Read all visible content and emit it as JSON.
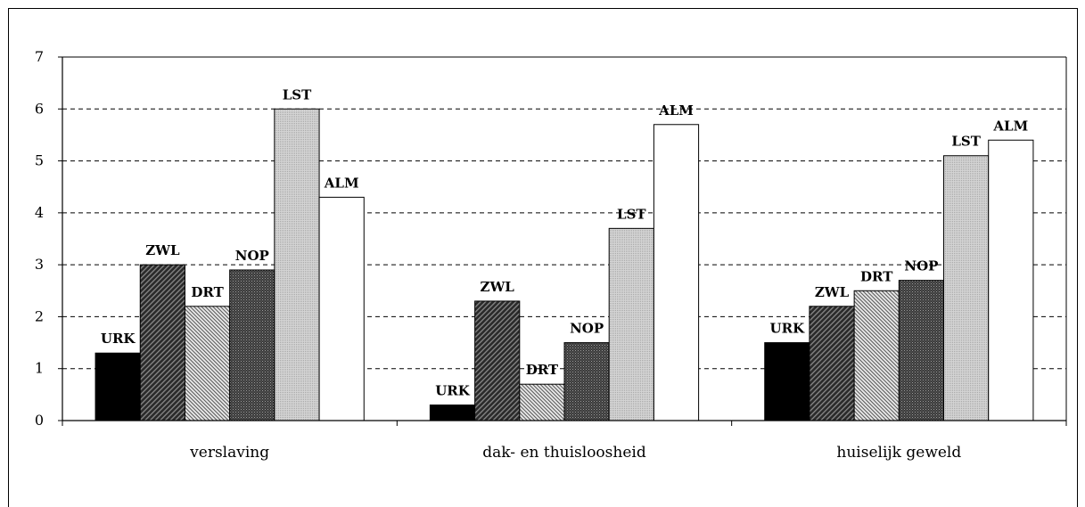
{
  "chart_data": {
    "type": "bar",
    "categories": [
      "verslaving",
      "dak- en thuisloosheid",
      "huiselijk geweld"
    ],
    "series": [
      {
        "name": "URK",
        "values": [
          1.3,
          0.3,
          1.5
        ],
        "fill": "solid-black"
      },
      {
        "name": "ZWL",
        "values": [
          3.0,
          2.3,
          2.2
        ],
        "fill": "dense-diagonal-dark"
      },
      {
        "name": "DRT",
        "values": [
          2.2,
          0.7,
          2.5
        ],
        "fill": "fine-diagonal-light"
      },
      {
        "name": "NOP",
        "values": [
          2.9,
          1.5,
          2.7
        ],
        "fill": "dense-crosshatch-dark"
      },
      {
        "name": "LST",
        "values": [
          6.0,
          3.7,
          5.1
        ],
        "fill": "dotted-light-grey"
      },
      {
        "name": "ALM",
        "values": [
          4.3,
          5.7,
          5.4
        ],
        "fill": "white"
      }
    ],
    "ylim": [
      0,
      7
    ],
    "yticks": [
      "0",
      "1",
      "2",
      "3",
      "4",
      "5",
      "6",
      "7"
    ],
    "grid": "dashed-horizontal",
    "data_labels": "series-name-above-bar",
    "legend": "none"
  }
}
